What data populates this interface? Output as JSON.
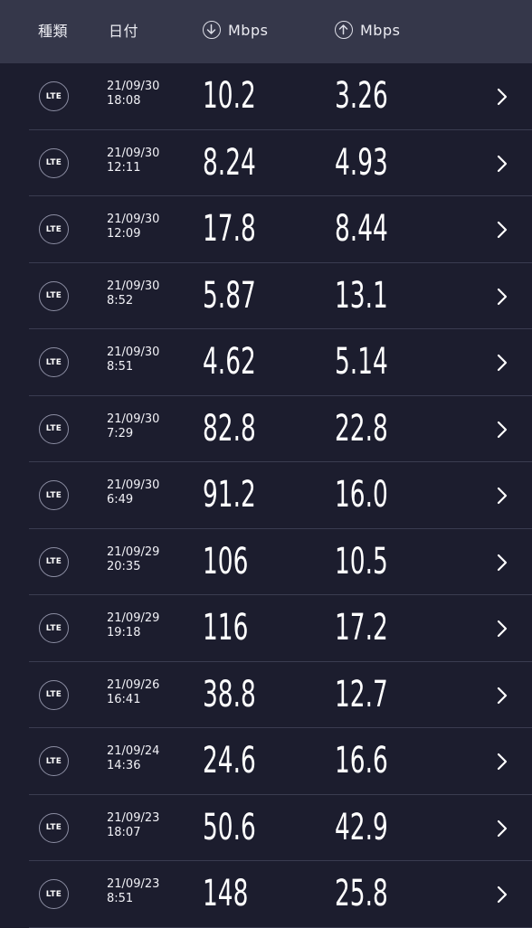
{
  "header": {
    "type_label": "種類",
    "date_label": "日付",
    "download_unit": "Mbps",
    "upload_unit": "Mbps"
  },
  "rows": [
    {
      "type": "LTE",
      "date": "21/09/30",
      "time": "18:08",
      "download": "10.2",
      "upload": "3.26"
    },
    {
      "type": "LTE",
      "date": "21/09/30",
      "time": "12:11",
      "download": "8.24",
      "upload": "4.93"
    },
    {
      "type": "LTE",
      "date": "21/09/30",
      "time": "12:09",
      "download": "17.8",
      "upload": "8.44"
    },
    {
      "type": "LTE",
      "date": "21/09/30",
      "time": "8:52",
      "download": "5.87",
      "upload": "13.1"
    },
    {
      "type": "LTE",
      "date": "21/09/30",
      "time": "8:51",
      "download": "4.62",
      "upload": "5.14"
    },
    {
      "type": "LTE",
      "date": "21/09/30",
      "time": "7:29",
      "download": "82.8",
      "upload": "22.8"
    },
    {
      "type": "LTE",
      "date": "21/09/30",
      "time": "6:49",
      "download": "91.2",
      "upload": "16.0"
    },
    {
      "type": "LTE",
      "date": "21/09/29",
      "time": "20:35",
      "download": "106",
      "upload": "10.5"
    },
    {
      "type": "LTE",
      "date": "21/09/29",
      "time": "19:18",
      "download": "116",
      "upload": "17.2"
    },
    {
      "type": "LTE",
      "date": "21/09/26",
      "time": "16:41",
      "download": "38.8",
      "upload": "12.7"
    },
    {
      "type": "LTE",
      "date": "21/09/24",
      "time": "14:36",
      "download": "24.6",
      "upload": "16.6"
    },
    {
      "type": "LTE",
      "date": "21/09/23",
      "time": "18:07",
      "download": "50.6",
      "upload": "42.9"
    },
    {
      "type": "LTE",
      "date": "21/09/23",
      "time": "8:51",
      "download": "148",
      "upload": "25.8"
    }
  ]
}
